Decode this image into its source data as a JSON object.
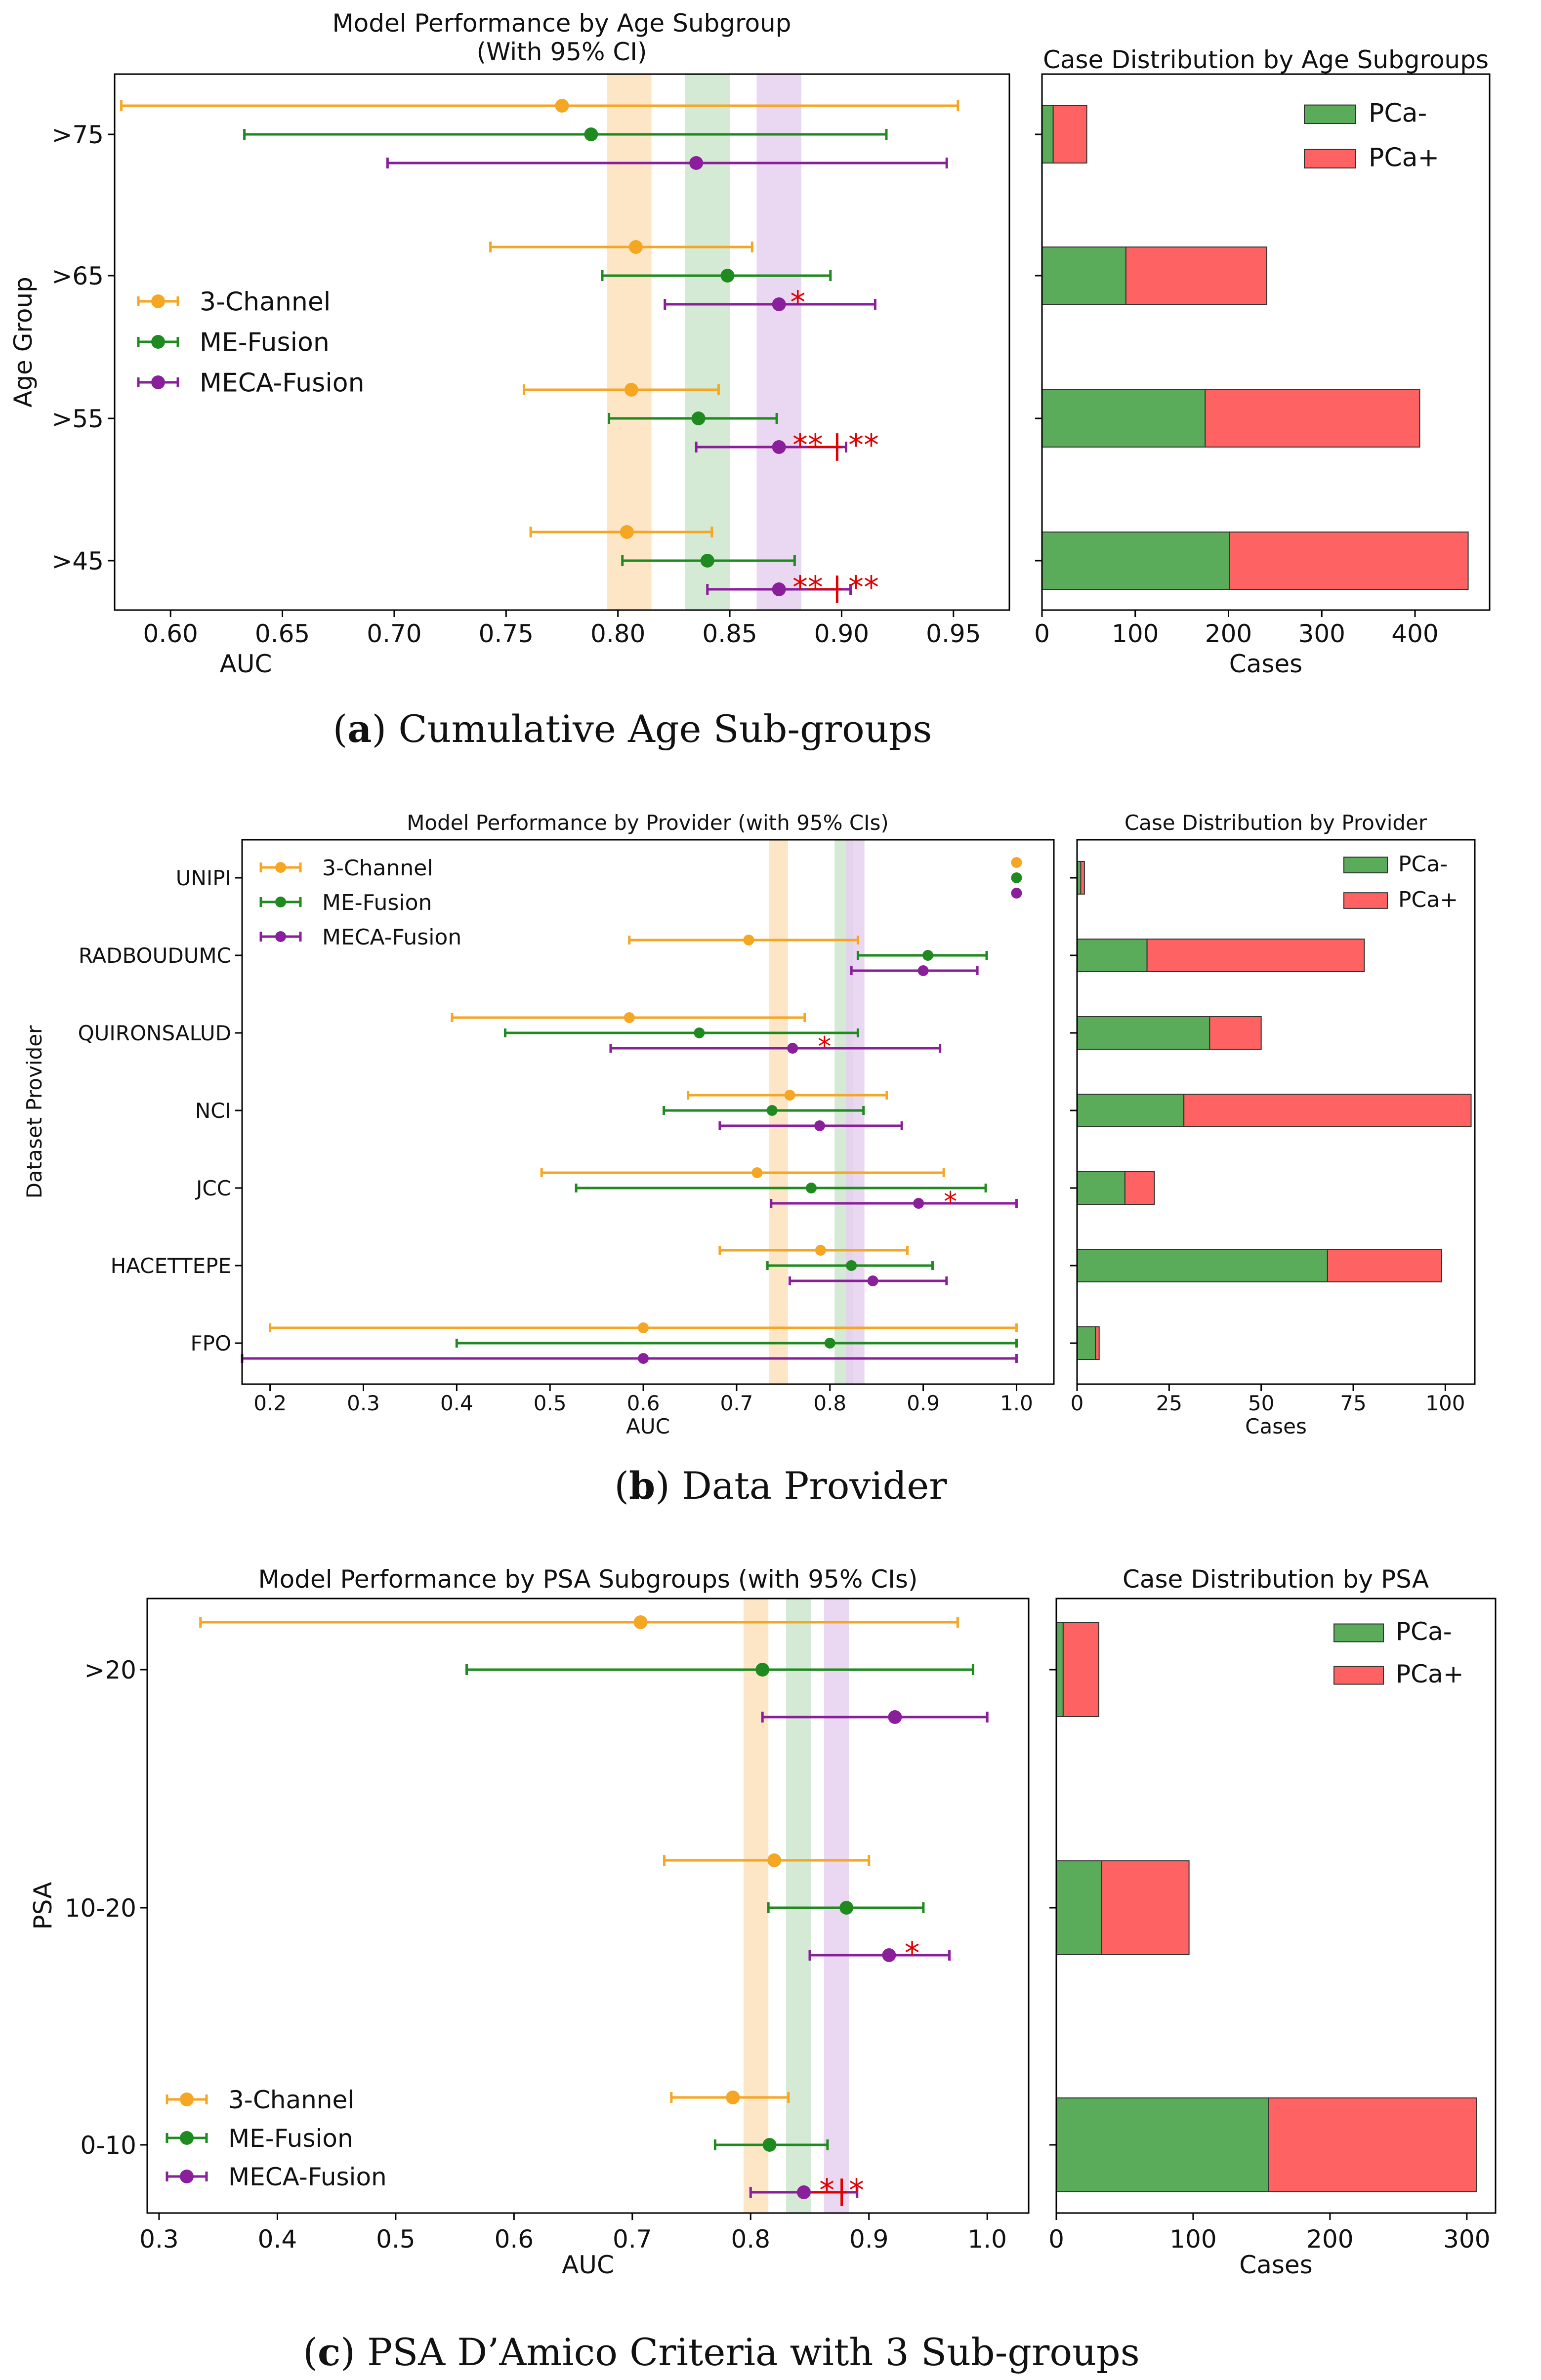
{
  "colors": {
    "three_channel": "#f5a623",
    "me_fusion": "#1f8a1f",
    "meca_fusion": "#8a1f9c",
    "pca_neg": "#5aab5a",
    "pca_pos": "#ff6262",
    "sig": "#e00000",
    "band_three": "#fde2bc",
    "band_me": "#cce6cc",
    "band_meca": "#e6d0ee"
  },
  "captions": [
    {
      "letter": "a",
      "text": " Cumulative Age Sub-groups"
    },
    {
      "letter": "b",
      "text": " Data Provider"
    },
    {
      "letter": "c",
      "text": " PSA D’Amico Criteria with 3 Sub-groups"
    }
  ],
  "chart_data": [
    {
      "type": "errorbar",
      "panel": "a",
      "title": [
        "Model Performance by Age Subgroup",
        "(With 95% CI)"
      ],
      "xlabel": "AUC",
      "ylabel": "Age Group",
      "xlim": [
        0.575,
        0.975
      ],
      "xticks": [
        0.6,
        0.65,
        0.7,
        0.75,
        0.8,
        0.85,
        0.9,
        0.95
      ],
      "xtick_labels": [
        "0.60",
        "0.65",
        "0.70",
        "0.75",
        "0.80",
        "0.85",
        "0.90",
        "0.95"
      ],
      "categories": [
        ">75",
        ">65",
        ">55",
        ">45"
      ],
      "legend": [
        "3-Channel",
        "ME-Fusion",
        "MECA-Fusion"
      ],
      "legend_position": "center-left",
      "bands": [
        [
          0.795,
          0.815
        ],
        [
          0.83,
          0.85
        ],
        [
          0.862,
          0.882
        ]
      ],
      "series": [
        {
          "name": "3-Channel",
          "mean": [
            0.775,
            0.808,
            0.806,
            0.804
          ],
          "low": [
            0.578,
            0.743,
            0.758,
            0.761
          ],
          "high": [
            0.952,
            0.86,
            0.845,
            0.842
          ]
        },
        {
          "name": "ME-Fusion",
          "mean": [
            0.788,
            0.849,
            0.836,
            0.84
          ],
          "low": [
            0.633,
            0.793,
            0.796,
            0.802
          ],
          "high": [
            0.92,
            0.895,
            0.871,
            0.879
          ]
        },
        {
          "name": "MECA-Fusion",
          "mean": [
            0.835,
            0.872,
            0.872,
            0.872
          ],
          "low": [
            0.697,
            0.821,
            0.835,
            0.84
          ],
          "high": [
            0.947,
            0.915,
            0.902,
            0.904
          ]
        }
      ],
      "annotations": [
        {
          "category": ">65",
          "text": "*",
          "x": 0.877
        },
        {
          "category": ">55",
          "text": "**",
          "x": 0.878
        },
        {
          "category": ">55",
          "text": "**",
          "x": 0.903,
          "bar": 0.898
        },
        {
          "category": ">45",
          "text": "**",
          "x": 0.878
        },
        {
          "category": ">45",
          "text": "**",
          "x": 0.903,
          "bar": 0.898
        }
      ]
    },
    {
      "type": "stacked-barh",
      "panel": "a",
      "title": "Case Distribution by Age Subgroups",
      "xlabel": "Cases",
      "xlim": [
        0,
        480
      ],
      "xticks": [
        0,
        100,
        200,
        300,
        400
      ],
      "categories": [
        ">75",
        ">65",
        ">55",
        ">45"
      ],
      "legend": [
        "PCa-",
        "PCa+"
      ],
      "legend_position": "top-right",
      "series": [
        {
          "name": "PCa-",
          "values": [
            12,
            90,
            175,
            201
          ]
        },
        {
          "name": "PCa+",
          "values": [
            36,
            151,
            230,
            256
          ]
        }
      ]
    },
    {
      "type": "errorbar",
      "panel": "b",
      "title": "Model Performance by Provider (with 95% CIs)",
      "xlabel": "AUC",
      "ylabel": "Dataset Provider",
      "xlim": [
        0.17,
        1.04
      ],
      "xticks": [
        0.2,
        0.3,
        0.4,
        0.5,
        0.6,
        0.7,
        0.8,
        0.9,
        1.0
      ],
      "xtick_labels": [
        "0.2",
        "0.3",
        "0.4",
        "0.5",
        "0.6",
        "0.7",
        "0.8",
        "0.9",
        "1.0"
      ],
      "categories": [
        "UNIPI",
        "RADBOUDUMC",
        "QUIRONSALUD",
        "NCI",
        "JCC",
        "HACETTEPE",
        "FPO"
      ],
      "legend": [
        "3-Channel",
        "ME-Fusion",
        "MECA-Fusion"
      ],
      "legend_position": "top-left",
      "bands": [
        [
          0.735,
          0.755
        ],
        [
          0.805,
          0.825
        ],
        [
          0.817,
          0.837
        ]
      ],
      "series": [
        {
          "name": "3-Channel",
          "mean": [
            1.0,
            0.713,
            0.585,
            0.757,
            0.722,
            0.79,
            0.6
          ],
          "low": [
            1.0,
            0.585,
            0.395,
            0.648,
            0.491,
            0.682,
            0.2
          ],
          "high": [
            1.0,
            0.83,
            0.773,
            0.861,
            0.922,
            0.883,
            1.0
          ]
        },
        {
          "name": "ME-Fusion",
          "mean": [
            1.0,
            0.905,
            0.66,
            0.738,
            0.78,
            0.823,
            0.8
          ],
          "low": [
            1.0,
            0.83,
            0.452,
            0.622,
            0.528,
            0.733,
            0.4
          ],
          "high": [
            1.0,
            0.968,
            0.83,
            0.836,
            0.967,
            0.91,
            1.0
          ]
        },
        {
          "name": "MECA-Fusion",
          "mean": [
            1.0,
            0.9,
            0.76,
            0.789,
            0.895,
            0.846,
            0.6
          ],
          "low": [
            1.0,
            0.823,
            0.565,
            0.682,
            0.737,
            0.757,
            0.17
          ],
          "high": [
            1.0,
            0.958,
            0.918,
            0.877,
            1.0,
            0.925,
            1.0
          ]
        }
      ],
      "annotations": [
        {
          "category": "QUIRONSALUD",
          "text": "*",
          "x": 0.787
        },
        {
          "category": "JCC",
          "text": "*",
          "x": 0.922
        }
      ]
    },
    {
      "type": "stacked-barh",
      "panel": "b",
      "title": "Case Distribution by Provider",
      "xlabel": "Cases",
      "xlim": [
        0,
        108
      ],
      "xticks": [
        0,
        25,
        50,
        75,
        100
      ],
      "categories": [
        "UNIPI",
        "RADBOUDUMC",
        "QUIRONSALUD",
        "NCI",
        "JCC",
        "HACETTEPE",
        "FPO"
      ],
      "legend": [
        "PCa-",
        "PCa+"
      ],
      "legend_position": "top-right",
      "series": [
        {
          "name": "PCa-",
          "values": [
            1,
            19,
            36,
            29,
            13,
            68,
            5
          ]
        },
        {
          "name": "PCa+",
          "values": [
            1,
            59,
            14,
            78,
            8,
            31,
            1
          ]
        }
      ]
    },
    {
      "type": "errorbar",
      "panel": "c",
      "title": "Model Performance by PSA Subgroups (with 95% CIs)",
      "xlabel": "AUC",
      "ylabel": "PSA",
      "xlim": [
        0.29,
        1.035
      ],
      "xticks": [
        0.3,
        0.4,
        0.5,
        0.6,
        0.7,
        0.8,
        0.9,
        1.0
      ],
      "xtick_labels": [
        "0.3",
        "0.4",
        "0.5",
        "0.6",
        "0.7",
        "0.8",
        "0.9",
        "1.0"
      ],
      "categories": [
        ">20",
        "10-20",
        "0-10"
      ],
      "legend": [
        "3-Channel",
        "ME-Fusion",
        "MECA-Fusion"
      ],
      "legend_position": "bottom-left",
      "bands": [
        [
          0.794,
          0.815
        ],
        [
          0.83,
          0.851
        ],
        [
          0.862,
          0.883
        ]
      ],
      "series": [
        {
          "name": "3-Channel",
          "mean": [
            0.707,
            0.82,
            0.785
          ],
          "low": [
            0.335,
            0.727,
            0.733
          ],
          "high": [
            0.975,
            0.9,
            0.832
          ]
        },
        {
          "name": "ME-Fusion",
          "mean": [
            0.81,
            0.881,
            0.816
          ],
          "low": [
            0.56,
            0.815,
            0.77
          ],
          "high": [
            0.988,
            0.946,
            0.865
          ]
        },
        {
          "name": "MECA-Fusion",
          "mean": [
            0.922,
            0.917,
            0.845
          ],
          "low": [
            0.81,
            0.85,
            0.8
          ],
          "high": [
            1.0,
            0.968,
            0.89
          ]
        }
      ],
      "annotations": [
        {
          "category": "10-20",
          "text": "*",
          "x": 0.93
        },
        {
          "category": "0-10",
          "text": "*",
          "x": 0.858
        },
        {
          "category": "0-10",
          "text": "*",
          "x": 0.883,
          "bar": 0.877
        }
      ]
    },
    {
      "type": "stacked-barh",
      "panel": "c",
      "title": "Case Distribution by PSA",
      "xlabel": "Cases",
      "xlim": [
        0,
        321
      ],
      "xticks": [
        0,
        100,
        200,
        300
      ],
      "categories": [
        ">20",
        "10-20",
        "0-10"
      ],
      "legend": [
        "PCa-",
        "PCa+"
      ],
      "legend_position": "top-right",
      "series": [
        {
          "name": "PCa-",
          "values": [
            5,
            33,
            155
          ]
        },
        {
          "name": "PCa+",
          "values": [
            26,
            64,
            152
          ]
        }
      ]
    }
  ]
}
